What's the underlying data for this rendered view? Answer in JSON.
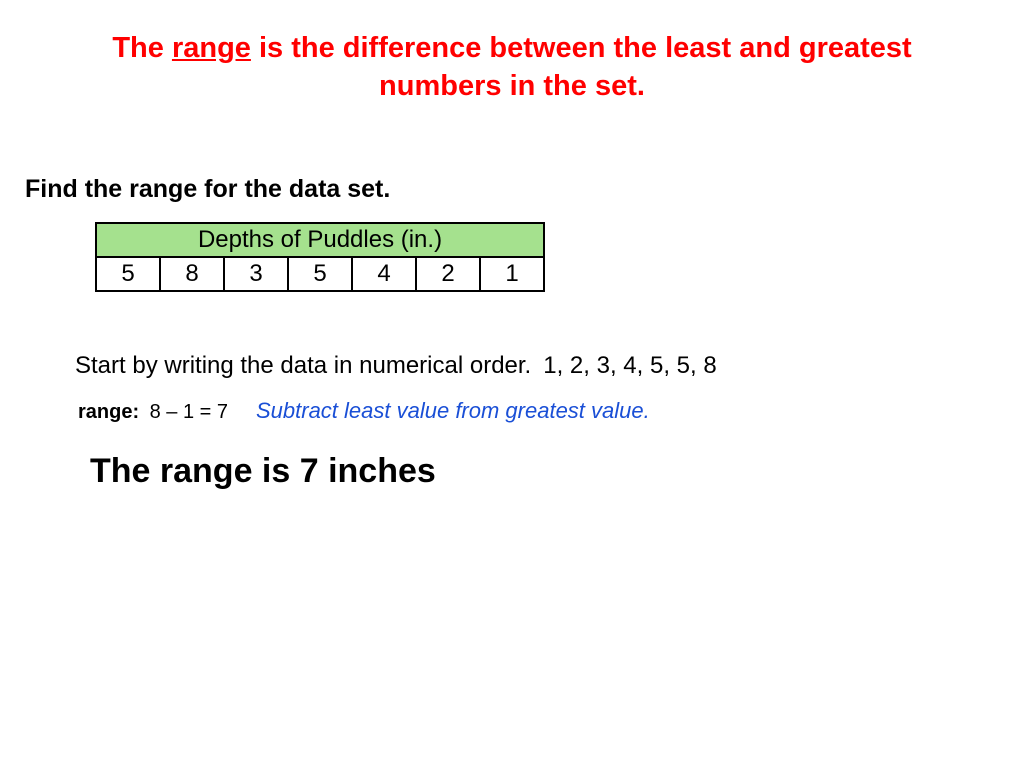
{
  "title": {
    "pre": "The ",
    "underlined": "range",
    "post": " is the difference between the least and greatest numbers in the set.",
    "color": "#ff0000",
    "fontsize": 29
  },
  "instruction": {
    "text": "Find the range for the data set.",
    "fontsize": 25
  },
  "table": {
    "header": "Depths of Puddles (in.)",
    "header_bg": "#a5e18e",
    "border_color": "#000000",
    "cell_fontsize": 24,
    "cells": [
      "5",
      "8",
      "3",
      "5",
      "4",
      "2",
      "1"
    ]
  },
  "step": {
    "text": "Start by writing the data in numerical order.",
    "ordered": "1, 2, 3, 4, 5, 5, 8",
    "fontsize": 24
  },
  "range": {
    "label": "range:",
    "calc": "8 – 1 = 7",
    "note": "Subtract least value from greatest value.",
    "note_color": "#1a4fd6",
    "label_fontsize": 20,
    "note_fontsize": 22
  },
  "answer": {
    "text": "The range is 7 inches",
    "fontsize": 34
  }
}
